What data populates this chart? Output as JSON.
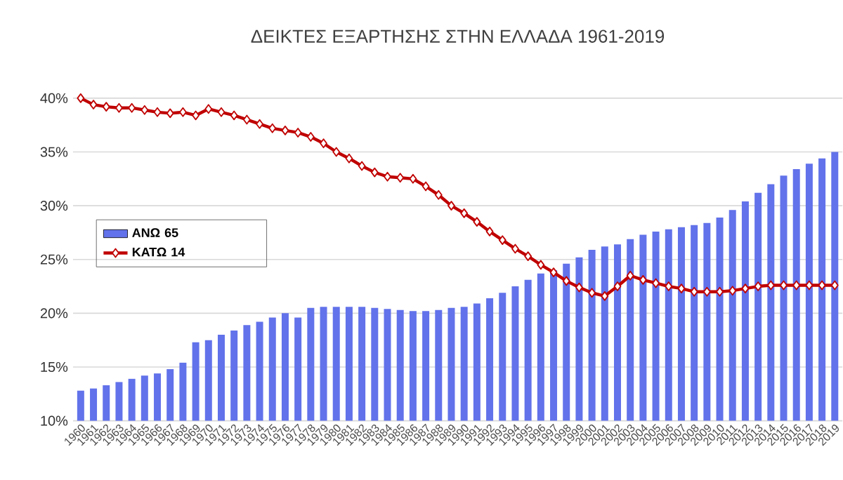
{
  "chart_data": {
    "type": "bar",
    "title": "ΔΕΙΚΤΕΣ ΕΞΑΡΤΗΣΗΣ ΣΤΗΝ ΕΛΛΑΔΑ 1961-2019",
    "categories": [
      "1960",
      "1961",
      "1962",
      "1963",
      "1964",
      "1965",
      "1966",
      "1967",
      "1968",
      "1969",
      "1970",
      "1971",
      "1972",
      "1973",
      "1974",
      "1975",
      "1976",
      "1977",
      "1978",
      "1979",
      "1980",
      "1981",
      "1982",
      "1983",
      "1984",
      "1985",
      "1986",
      "1987",
      "1988",
      "1989",
      "1990",
      "1991",
      "1992",
      "1993",
      "1994",
      "1995",
      "1996",
      "1997",
      "1998",
      "1999",
      "2000",
      "2001",
      "2002",
      "2003",
      "2004",
      "2005",
      "2006",
      "2007",
      "2008",
      "2009",
      "2010",
      "2011",
      "2012",
      "2013",
      "2014",
      "2015",
      "2016",
      "2017",
      "2018",
      "2019"
    ],
    "series": [
      {
        "name": "ΑΝΩ 65",
        "color": "#6272ea",
        "values": [
          12.8,
          13.0,
          13.3,
          13.6,
          13.9,
          14.2,
          14.4,
          14.8,
          15.4,
          17.3,
          17.5,
          18.0,
          18.4,
          18.9,
          19.2,
          19.6,
          20.0,
          19.6,
          20.5,
          20.6,
          20.6,
          20.6,
          20.6,
          20.5,
          20.4,
          20.3,
          20.2,
          20.2,
          20.3,
          20.5,
          20.6,
          20.9,
          21.4,
          21.9,
          22.5,
          23.1,
          23.7,
          24.0,
          24.6,
          25.2,
          25.9,
          26.2,
          26.4,
          26.9,
          27.3,
          27.6,
          27.8,
          28.0,
          28.2,
          28.4,
          28.9,
          29.6,
          30.4,
          31.2,
          32.0,
          32.8,
          33.4,
          33.9,
          34.4,
          35.0
        ]
      },
      {
        "name": "ΚΑΤΩ 14",
        "type": "line",
        "color": "#c00000",
        "marker": "diamond",
        "values": [
          40.0,
          39.4,
          39.2,
          39.1,
          39.1,
          38.9,
          38.7,
          38.6,
          38.7,
          38.4,
          39.0,
          38.7,
          38.4,
          38.0,
          37.6,
          37.2,
          37.0,
          36.8,
          36.4,
          35.8,
          35.0,
          34.4,
          33.7,
          33.1,
          32.7,
          32.6,
          32.5,
          31.8,
          31.0,
          30.0,
          29.3,
          28.5,
          27.6,
          26.8,
          26.0,
          25.3,
          24.5,
          23.8,
          23.0,
          22.4,
          21.9,
          21.6,
          22.5,
          23.5,
          23.1,
          22.8,
          22.5,
          22.3,
          22.0,
          22.0,
          22.0,
          22.1,
          22.3,
          22.5,
          22.6,
          22.6,
          22.6,
          22.6,
          22.6,
          22.6
        ]
      }
    ],
    "ylim": [
      10,
      40
    ],
    "yticks": [
      {
        "value": 10,
        "label": "10%"
      },
      {
        "value": 15,
        "label": "15%"
      },
      {
        "value": 20,
        "label": "20%"
      },
      {
        "value": 25,
        "label": "25%"
      },
      {
        "value": 30,
        "label": "30%"
      },
      {
        "value": 35,
        "label": "35%"
      },
      {
        "value": 40,
        "label": "40%"
      }
    ],
    "grid": "y",
    "legend": "left"
  }
}
